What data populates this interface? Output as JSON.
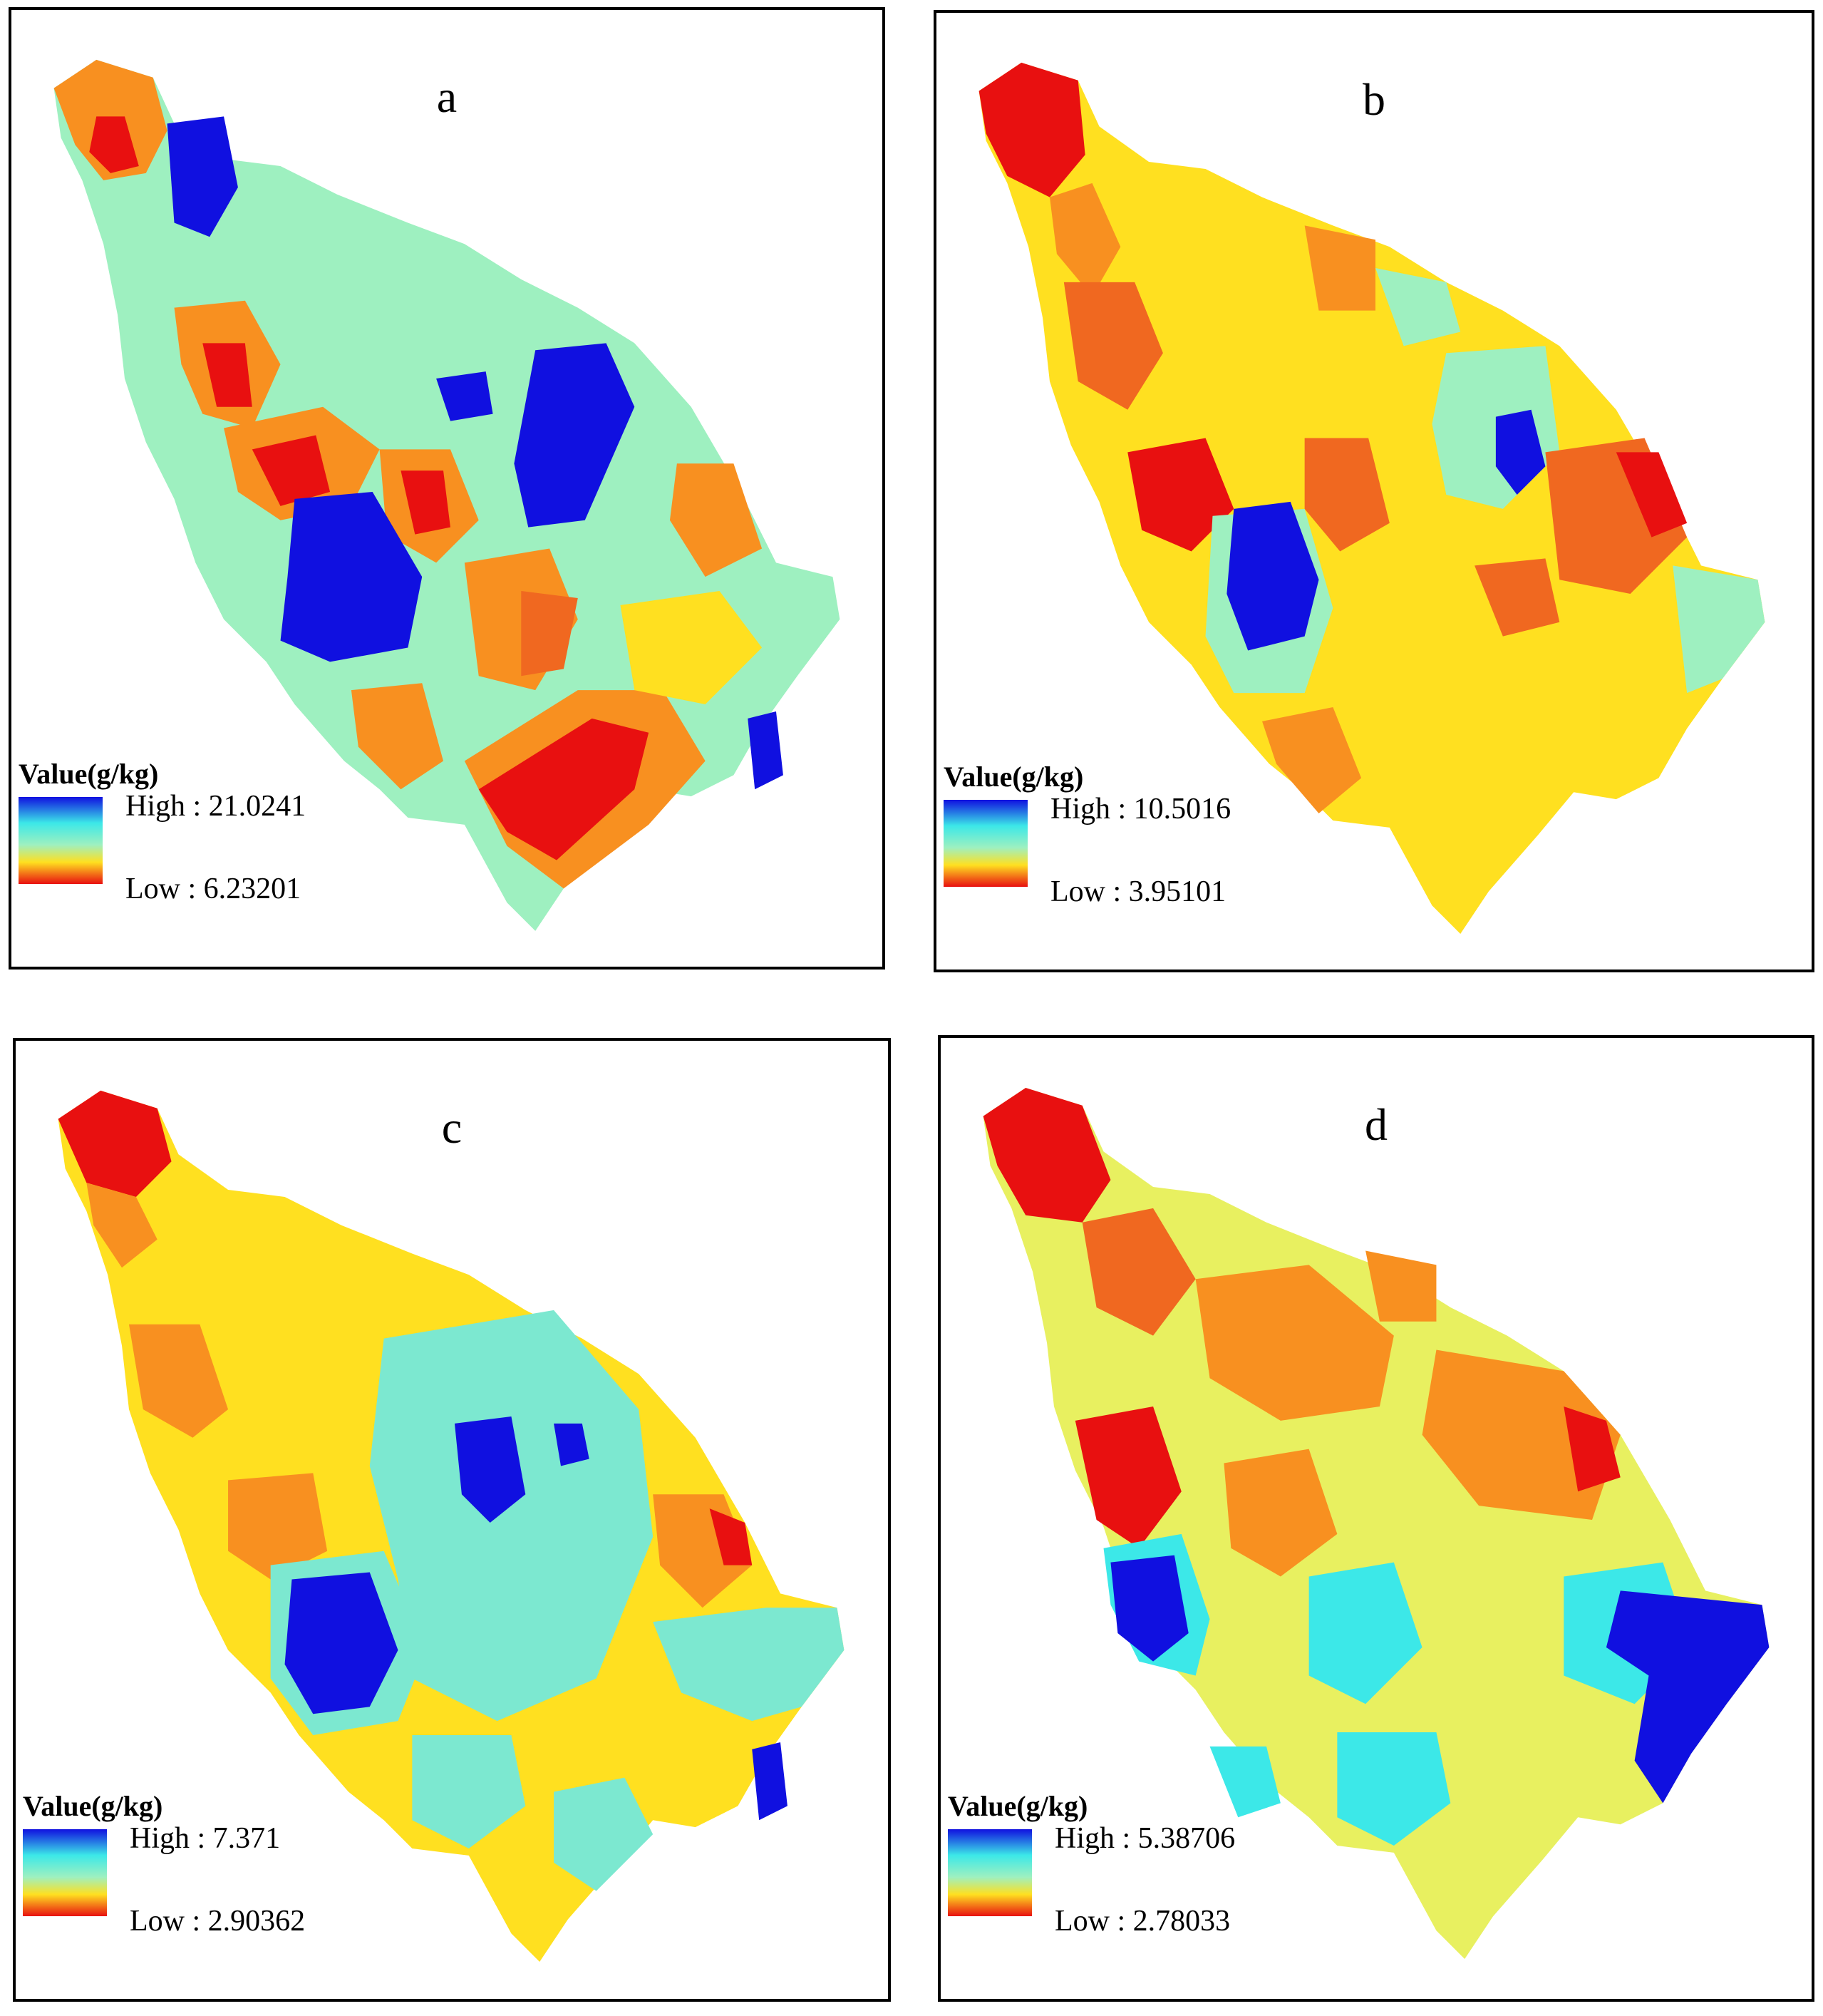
{
  "panels": [
    {
      "label": "a",
      "legend": {
        "title": "Value(g/kg)",
        "high": "High : 21.0241",
        "low": "Low : 6.23201"
      }
    },
    {
      "label": "b",
      "legend": {
        "title": "Value(g/kg)",
        "high": "High : 10.5016",
        "low": "Low : 3.95101"
      }
    },
    {
      "label": "c",
      "legend": {
        "title": "Value(g/kg)",
        "high": "High : 7.371",
        "low": "Low : 2.90362"
      }
    },
    {
      "label": "d",
      "legend": {
        "title": "Value(g/kg)",
        "high": "High : 5.38706",
        "low": "Low : 2.78033"
      }
    }
  ],
  "colors": {
    "blue": "#1010e0",
    "cyan": "#3ce8e8",
    "mint": "#9ef0c0",
    "aqua": "#7ce8d0",
    "yellow": "#ffe020",
    "lightyellow": "#e8f060",
    "orange": "#f89020",
    "darkorange": "#f06820",
    "red": "#e81010"
  }
}
